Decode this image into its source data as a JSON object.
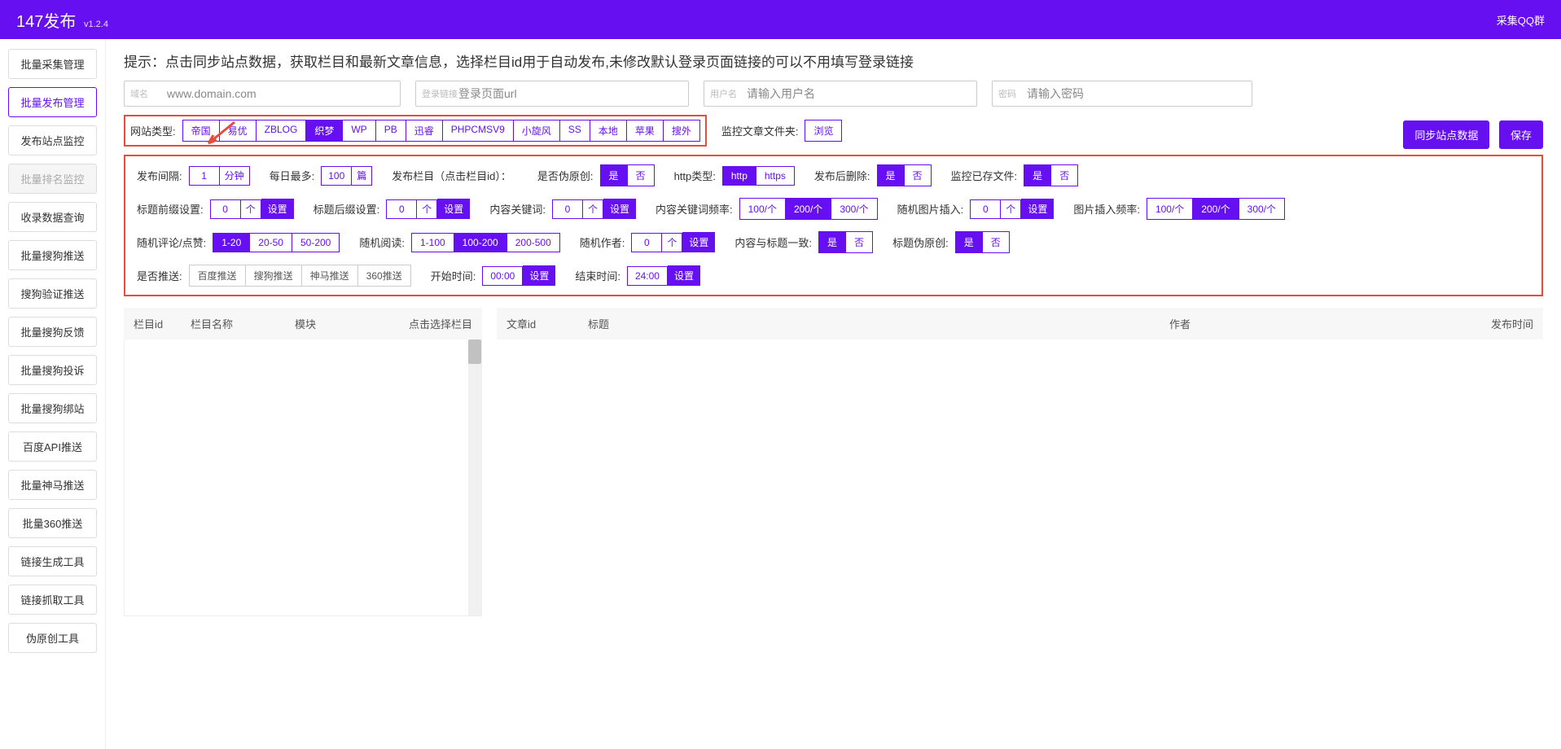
{
  "header": {
    "title": "147发布",
    "version": "v1.2.4",
    "right": "采集QQ群"
  },
  "sidebar": {
    "items": [
      {
        "label": "批量采集管理",
        "state": ""
      },
      {
        "label": "批量发布管理",
        "state": "active"
      },
      {
        "label": "发布站点监控",
        "state": ""
      },
      {
        "label": "批量排名监控",
        "state": "disabled"
      },
      {
        "label": "收录数据查询",
        "state": ""
      },
      {
        "label": "批量搜狗推送",
        "state": ""
      },
      {
        "label": "搜狗验证推送",
        "state": ""
      },
      {
        "label": "批量搜狗反馈",
        "state": ""
      },
      {
        "label": "批量搜狗投诉",
        "state": ""
      },
      {
        "label": "批量搜狗绑站",
        "state": ""
      },
      {
        "label": "百度API推送",
        "state": ""
      },
      {
        "label": "批量神马推送",
        "state": ""
      },
      {
        "label": "批量360推送",
        "state": ""
      },
      {
        "label": "链接生成工具",
        "state": ""
      },
      {
        "label": "链接抓取工具",
        "state": ""
      },
      {
        "label": "伪原创工具",
        "state": ""
      }
    ]
  },
  "tip": "提示：点击同步站点数据，获取栏目和最新文章信息，选择栏目id用于自动发布,未修改默认登录页面链接的可以不用填写登录链接",
  "inputs": {
    "domain": {
      "label": "域名",
      "ph": "www.domain.com"
    },
    "login": {
      "label": "登录链接",
      "ph": "登录页面url"
    },
    "user": {
      "label": "用户名",
      "ph": "请输入用户名"
    },
    "pass": {
      "label": "密码",
      "ph": "请输入密码"
    }
  },
  "siteType": {
    "label": "网站类型:",
    "opts": [
      "帝国",
      "易优",
      "ZBLOG",
      "织梦",
      "WP",
      "PB",
      "迅睿",
      "PHPCMSV9",
      "小旋风",
      "SS",
      "本地",
      "苹果",
      "搜外"
    ],
    "active": 3
  },
  "monitorFolder": {
    "label": "监控文章文件夹:",
    "btn": "浏览"
  },
  "actions": {
    "sync": "同步站点数据",
    "save": "保存"
  },
  "cfg": {
    "interval": {
      "label": "发布间隔:",
      "val": "1",
      "unit": "分钟"
    },
    "dailyMax": {
      "label": "每日最多:",
      "val": "100",
      "unit": "篇"
    },
    "column": {
      "label": "发布栏目（点击栏目id）："
    },
    "fakeOrig": {
      "label": "是否伪原创:",
      "opts": [
        "是",
        "否"
      ],
      "active": 0
    },
    "httpType": {
      "label": "http类型:",
      "opts": [
        "http",
        "https"
      ],
      "active": 0
    },
    "delAfter": {
      "label": "发布后删除:",
      "opts": [
        "是",
        "否"
      ],
      "active": 0
    },
    "monExist": {
      "label": "监控已存文件:",
      "opts": [
        "是",
        "否"
      ],
      "active": 0
    },
    "prefix": {
      "label": "标题前缀设置:",
      "val": "0",
      "unit": "个",
      "btn": "设置"
    },
    "suffix": {
      "label": "标题后缀设置:",
      "val": "0",
      "unit": "个",
      "btn": "设置"
    },
    "keyword": {
      "label": "内容关键词:",
      "val": "0",
      "unit": "个",
      "btn": "设置"
    },
    "keyFreq": {
      "label": "内容关键词频率:",
      "opts": [
        "100/个",
        "200/个",
        "300/个"
      ],
      "active": 1
    },
    "randImg": {
      "label": "随机图片插入:",
      "val": "0",
      "unit": "个",
      "btn": "设置"
    },
    "imgFreq": {
      "label": "图片插入频率:",
      "opts": [
        "100/个",
        "200/个",
        "300/个"
      ],
      "active": 1
    },
    "comment": {
      "label": "随机评论/点赞:",
      "opts": [
        "1-20",
        "20-50",
        "50-200"
      ],
      "active": 0
    },
    "read": {
      "label": "随机阅读:",
      "opts": [
        "1-100",
        "100-200",
        "200-500"
      ],
      "active": 1
    },
    "author": {
      "label": "随机作者:",
      "val": "0",
      "unit": "个",
      "btn": "设置"
    },
    "titleMatch": {
      "label": "内容与标题一致:",
      "opts": [
        "是",
        "否"
      ],
      "active": 0
    },
    "titleFake": {
      "label": "标题伪原创:",
      "opts": [
        "是",
        "否"
      ],
      "active": 0
    },
    "push": {
      "label": "是否推送:",
      "opts": [
        "百度推送",
        "搜狗推送",
        "神马推送",
        "360推送"
      ]
    },
    "startTime": {
      "label": "开始时间:",
      "val": "00:00",
      "btn": "设置"
    },
    "endTime": {
      "label": "结束时间:",
      "val": "24:00",
      "btn": "设置"
    }
  },
  "table1": {
    "cols": [
      "栏目id",
      "栏目名称",
      "模块",
      "点击选择栏目"
    ]
  },
  "table2": {
    "cols": [
      "文章id",
      "标题",
      "作者",
      "发布时间"
    ]
  }
}
